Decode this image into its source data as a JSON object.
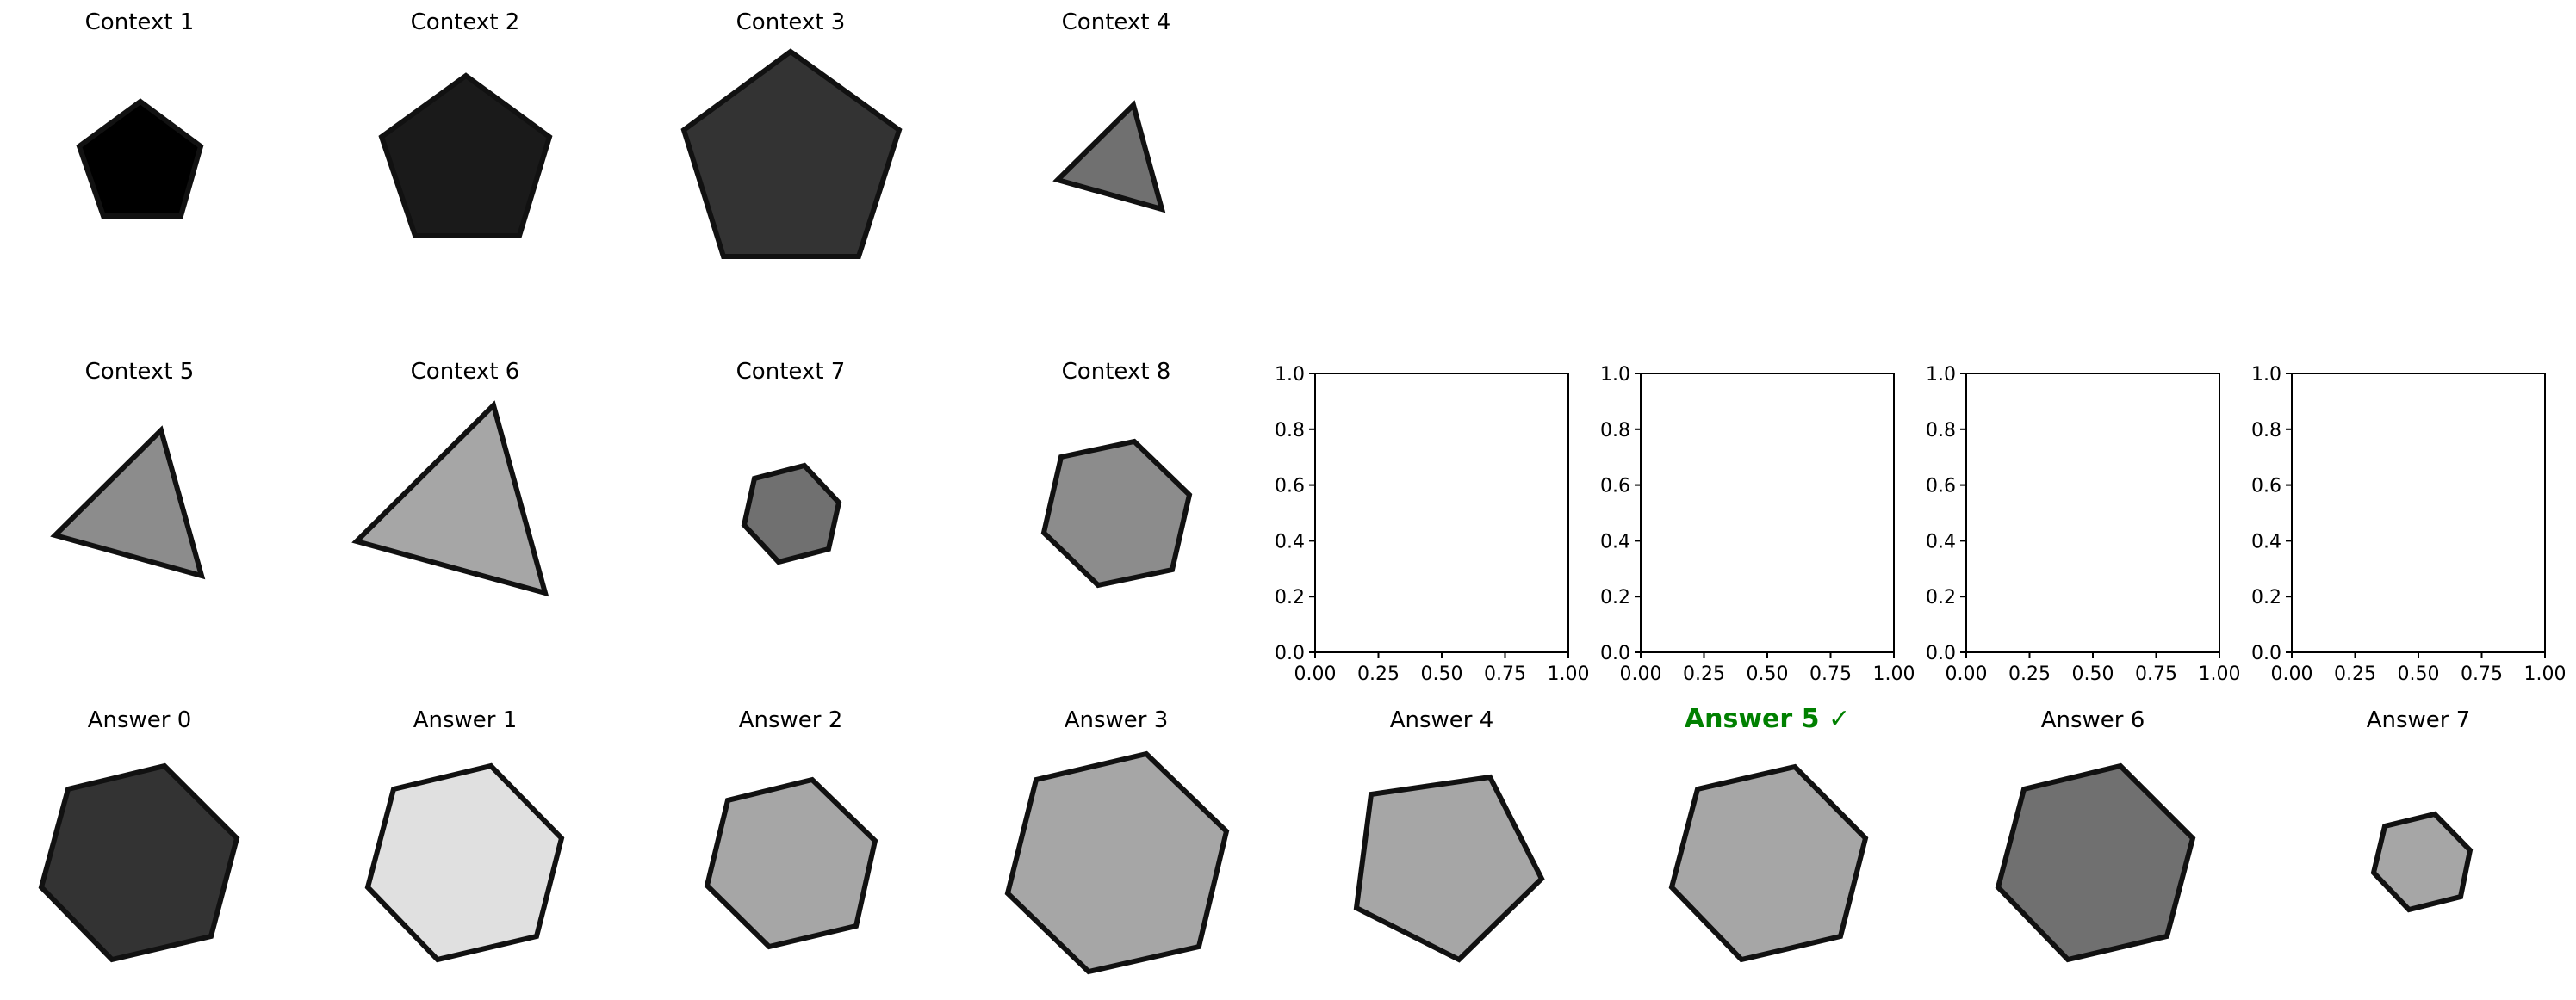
{
  "panels": [
    {
      "id": "context-1",
      "title": "Context 1",
      "shape": "pentagon",
      "fill": "#000000"
    },
    {
      "id": "context-2",
      "title": "Context 2",
      "shape": "pentagon",
      "fill": "#1a1a1a"
    },
    {
      "id": "context-3",
      "title": "Context 3",
      "shape": "pentagon",
      "fill": "#333333"
    },
    {
      "id": "context-4",
      "title": "Context 4",
      "shape": "triangle",
      "fill": "#707070"
    },
    {
      "id": "context-5",
      "title": "Context 5",
      "shape": "triangle",
      "fill": "#8c8c8c"
    },
    {
      "id": "context-6",
      "title": "Context 6",
      "shape": "triangle",
      "fill": "#a6a6a6"
    },
    {
      "id": "context-7",
      "title": "Context 7",
      "shape": "hexagon",
      "fill": "#707070"
    },
    {
      "id": "context-8",
      "title": "Context 8",
      "shape": "hexagon",
      "fill": "#8c8c8c"
    },
    {
      "id": "answer-0",
      "title": "Answer 0",
      "shape": "hexagon",
      "fill": "#333333"
    },
    {
      "id": "answer-1",
      "title": "Answer 1",
      "shape": "hexagon",
      "fill": "#e0e0e0"
    },
    {
      "id": "answer-2",
      "title": "Answer 2",
      "shape": "hexagon",
      "fill": "#a6a6a6"
    },
    {
      "id": "answer-3",
      "title": "Answer 3",
      "shape": "hexagon",
      "fill": "#a6a6a6"
    },
    {
      "id": "answer-4",
      "title": "Answer 4",
      "shape": "pentagon",
      "fill": "#a6a6a6"
    },
    {
      "id": "answer-5",
      "title": "Answer 5 ✓",
      "shape": "hexagon",
      "fill": "#a6a6a6",
      "correct": true,
      "color": "#008000"
    },
    {
      "id": "answer-6",
      "title": "Answer 6",
      "shape": "hexagon",
      "fill": "#707070"
    },
    {
      "id": "answer-7",
      "title": "Answer 7",
      "shape": "hexagon",
      "fill": "#a6a6a6"
    }
  ],
  "empty_axes": {
    "count": 4,
    "x_ticks": [
      "0.00",
      "0.25",
      "0.50",
      "0.75",
      "1.00"
    ],
    "y_ticks": [
      "0.0",
      "0.2",
      "0.4",
      "0.6",
      "0.8",
      "1.0"
    ]
  }
}
